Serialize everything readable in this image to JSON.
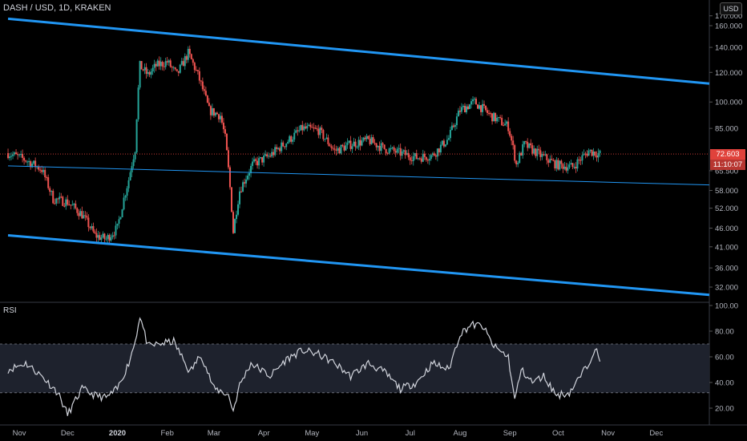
{
  "header": {
    "title": "DASH / USD, 1D, KRAKEN",
    "currency": "USD"
  },
  "rsi_panel": {
    "label": "RSI"
  },
  "price_tags": {
    "last_price": "72.603",
    "countdown": "11:10:07"
  },
  "colors": {
    "up": "#26a69a",
    "down": "#ef5350",
    "channel": "#2196f3",
    "rsi_line": "#aaaaaa",
    "rsi_band": "#1e222d"
  },
  "chart_data": [
    {
      "type": "candlestick",
      "title": "DASH / USD, 1D, KRAKEN",
      "y_scale": "log",
      "ylim": [
        29,
        170
      ],
      "price_ticks": [
        "170.000",
        "160.000",
        "140.000",
        "120.000",
        "100.000",
        "85.000",
        "72.603",
        "65.500",
        "58.000",
        "52.000",
        "46.000",
        "41.000",
        "36.000",
        "32.000"
      ],
      "x_ticks": [
        "Nov",
        "Dec",
        "2020",
        "Feb",
        "Mar",
        "Apr",
        "May",
        "Jun",
        "Jul",
        "Aug",
        "Sep",
        "Oct",
        "Nov",
        "Dec"
      ],
      "last_price": 72.603,
      "close_series": [
        {
          "date": "2019-10-25",
          "close": 73
        },
        {
          "date": "2019-11-05",
          "close": 70
        },
        {
          "date": "2019-11-15",
          "close": 66
        },
        {
          "date": "2019-11-22",
          "close": 55
        },
        {
          "date": "2019-12-01",
          "close": 54
        },
        {
          "date": "2019-12-10",
          "close": 50
        },
        {
          "date": "2019-12-18",
          "close": 44
        },
        {
          "date": "2019-12-25",
          "close": 43
        },
        {
          "date": "2020-01-01",
          "close": 46
        },
        {
          "date": "2020-01-08",
          "close": 62
        },
        {
          "date": "2020-01-12",
          "close": 75
        },
        {
          "date": "2020-01-15",
          "close": 125
        },
        {
          "date": "2020-01-20",
          "close": 118
        },
        {
          "date": "2020-01-25",
          "close": 125
        },
        {
          "date": "2020-02-01",
          "close": 128
        },
        {
          "date": "2020-02-07",
          "close": 118
        },
        {
          "date": "2020-02-14",
          "close": 135
        },
        {
          "date": "2020-02-20",
          "close": 118
        },
        {
          "date": "2020-02-27",
          "close": 95
        },
        {
          "date": "2020-03-05",
          "close": 92
        },
        {
          "date": "2020-03-08",
          "close": 80
        },
        {
          "date": "2020-03-13",
          "close": 45
        },
        {
          "date": "2020-03-17",
          "close": 58
        },
        {
          "date": "2020-03-25",
          "close": 68
        },
        {
          "date": "2020-04-05",
          "close": 72
        },
        {
          "date": "2020-04-15",
          "close": 78
        },
        {
          "date": "2020-04-25",
          "close": 85
        },
        {
          "date": "2020-05-05",
          "close": 84
        },
        {
          "date": "2020-05-15",
          "close": 74
        },
        {
          "date": "2020-05-25",
          "close": 77
        },
        {
          "date": "2020-06-05",
          "close": 79
        },
        {
          "date": "2020-06-15",
          "close": 75
        },
        {
          "date": "2020-06-25",
          "close": 73
        },
        {
          "date": "2020-07-05",
          "close": 71
        },
        {
          "date": "2020-07-15",
          "close": 72
        },
        {
          "date": "2020-07-25",
          "close": 80
        },
        {
          "date": "2020-08-01",
          "close": 95
        },
        {
          "date": "2020-08-10",
          "close": 100
        },
        {
          "date": "2020-08-20",
          "close": 92
        },
        {
          "date": "2020-08-31",
          "close": 86
        },
        {
          "date": "2020-09-05",
          "close": 68
        },
        {
          "date": "2020-09-10",
          "close": 77
        },
        {
          "date": "2020-09-20",
          "close": 72
        },
        {
          "date": "2020-09-30",
          "close": 68
        },
        {
          "date": "2020-10-10",
          "close": 67
        },
        {
          "date": "2020-10-20",
          "close": 74
        },
        {
          "date": "2020-10-27",
          "close": 72.603
        }
      ],
      "trendlines": [
        {
          "name": "channel-top",
          "from": {
            "date": "2019-10-25",
            "price": 167
          },
          "to": {
            "date": "2021-01-03",
            "price": 112
          }
        },
        {
          "name": "channel-bottom",
          "from": {
            "date": "2019-10-25",
            "price": 44
          },
          "to": {
            "date": "2021-01-03",
            "price": 30.5
          }
        },
        {
          "name": "support",
          "from": {
            "date": "2019-10-25",
            "price": 67.5
          },
          "to": {
            "date": "2021-01-03",
            "price": 60
          }
        }
      ]
    },
    {
      "type": "line",
      "title": "RSI",
      "ylim": [
        10,
        100
      ],
      "y_ticks": [
        "100.00",
        "80.00",
        "60.00",
        "40.00",
        "20.00"
      ],
      "band": [
        32,
        70
      ],
      "x": [
        "2019-10-25",
        "2019-11-05",
        "2019-11-15",
        "2019-11-25",
        "2019-12-01",
        "2019-12-10",
        "2019-12-18",
        "2019-12-25",
        "2020-01-01",
        "2020-01-08",
        "2020-01-12",
        "2020-01-15",
        "2020-01-20",
        "2020-01-27",
        "2020-02-05",
        "2020-02-15",
        "2020-02-22",
        "2020-03-01",
        "2020-03-06",
        "2020-03-10",
        "2020-03-13",
        "2020-03-17",
        "2020-03-24",
        "2020-04-05",
        "2020-04-15",
        "2020-04-25",
        "2020-05-05",
        "2020-05-15",
        "2020-05-25",
        "2020-06-05",
        "2020-06-15",
        "2020-06-25",
        "2020-07-05",
        "2020-07-15",
        "2020-07-25",
        "2020-08-01",
        "2020-08-08",
        "2020-08-15",
        "2020-08-22",
        "2020-08-31",
        "2020-09-04",
        "2020-09-08",
        "2020-09-15",
        "2020-09-22",
        "2020-09-30",
        "2020-10-08",
        "2020-10-15",
        "2020-10-20",
        "2020-10-24",
        "2020-10-27"
      ],
      "values": [
        50,
        55,
        45,
        32,
        15,
        35,
        30,
        28,
        35,
        55,
        72,
        92,
        68,
        70,
        72,
        48,
        62,
        35,
        33,
        30,
        18,
        38,
        55,
        45,
        58,
        65,
        62,
        55,
        45,
        55,
        48,
        35,
        40,
        55,
        50,
        78,
        85,
        84,
        68,
        60,
        26,
        50,
        40,
        45,
        30,
        32,
        45,
        55,
        68,
        55
      ]
    }
  ]
}
